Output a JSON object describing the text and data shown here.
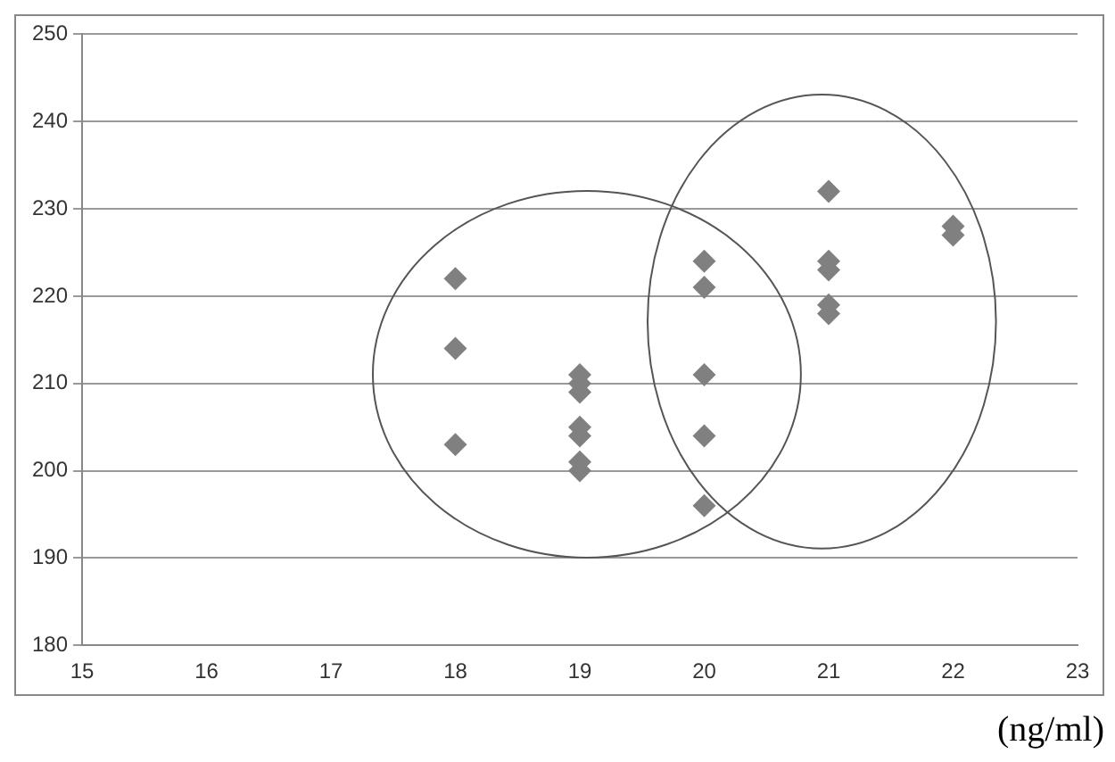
{
  "chart_data": {
    "type": "scatter",
    "xlabel": "(ng/ml)",
    "x": [
      18,
      18,
      18,
      19,
      19,
      19,
      19,
      19,
      19,
      19,
      20,
      20,
      20,
      20,
      20,
      21,
      21,
      21,
      21,
      21,
      22,
      22
    ],
    "series": [
      {
        "color": "#808080",
        "values": [
          222,
          214,
          203,
          211,
          210,
          209,
          205,
          204,
          201,
          200,
          224,
          221,
          211,
          204,
          196,
          232,
          224,
          223,
          219,
          218,
          228,
          227
        ]
      }
    ],
    "xlim": [
      15,
      23
    ],
    "xticks": [
      15,
      16,
      17,
      18,
      19,
      20,
      21,
      22,
      23
    ],
    "ylim": [
      180,
      250
    ],
    "yticks": [
      180,
      190,
      200,
      210,
      220,
      230,
      240,
      250
    ],
    "grid": "y",
    "marker": "diamond",
    "legend": false
  }
}
